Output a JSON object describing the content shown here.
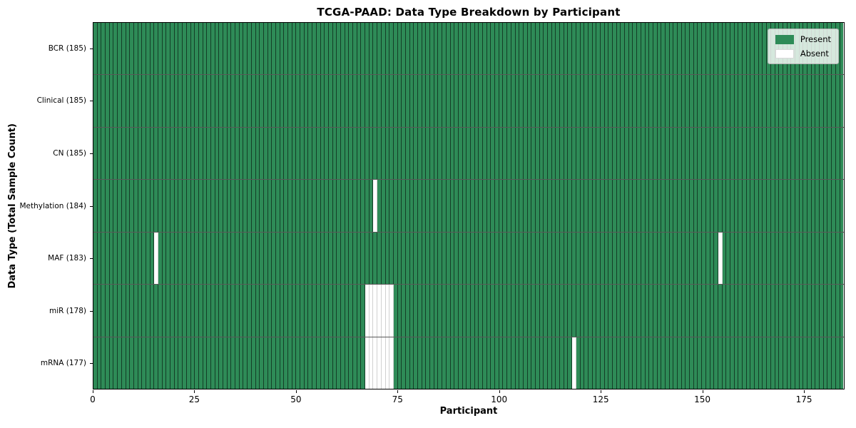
{
  "chart_data": {
    "type": "heatmap",
    "title": "TCGA-PAAD: Data Type Breakdown by Participant",
    "xlabel": "Participant",
    "ylabel": "Data Type (Total Sample Count)",
    "n_participants": 185,
    "x_ticks": [
      0,
      25,
      50,
      75,
      100,
      125,
      150,
      175
    ],
    "x_range": [
      0,
      185
    ],
    "grid": "cell-borders",
    "rows": [
      {
        "name": "bcr",
        "label": "BCR (185)",
        "data_type": "BCR",
        "present_count": 185,
        "absent_participants": []
      },
      {
        "name": "clinical",
        "label": "Clinical (185)",
        "data_type": "Clinical",
        "present_count": 185,
        "absent_participants": []
      },
      {
        "name": "cn",
        "label": "CN (185)",
        "data_type": "CN",
        "present_count": 185,
        "absent_participants": []
      },
      {
        "name": "methylation",
        "label": "Methylation (184)",
        "data_type": "Methylation",
        "present_count": 184,
        "absent_participants": [
          69
        ]
      },
      {
        "name": "maf",
        "label": "MAF (183)",
        "data_type": "MAF",
        "present_count": 183,
        "absent_participants": [
          15,
          154
        ]
      },
      {
        "name": "mir",
        "label": "miR (178)",
        "data_type": "miR",
        "present_count": 178,
        "absent_participants": [
          67,
          68,
          69,
          70,
          71,
          72,
          73
        ]
      },
      {
        "name": "mrna",
        "label": "mRNA (177)",
        "data_type": "mRNA",
        "present_count": 177,
        "absent_participants": [
          67,
          68,
          69,
          70,
          71,
          72,
          73,
          118
        ]
      }
    ],
    "legend": {
      "position": "upper right",
      "entries": [
        {
          "label": "Present",
          "color": "#2e8b57"
        },
        {
          "label": "Absent",
          "color": "#ffffff"
        }
      ]
    },
    "colors": {
      "present": "#2e8b57",
      "absent": "#ffffff",
      "cell_edge_present": "rgba(0,0,0,0.55)",
      "cell_edge_absent": "rgba(0,0,0,0.18)",
      "row_divider": "rgba(0,0,0,0.65)",
      "plot_border": "#000000",
      "legend_bg": "rgba(255,255,255,0.8)",
      "legend_border": "#b0b0b0"
    }
  }
}
